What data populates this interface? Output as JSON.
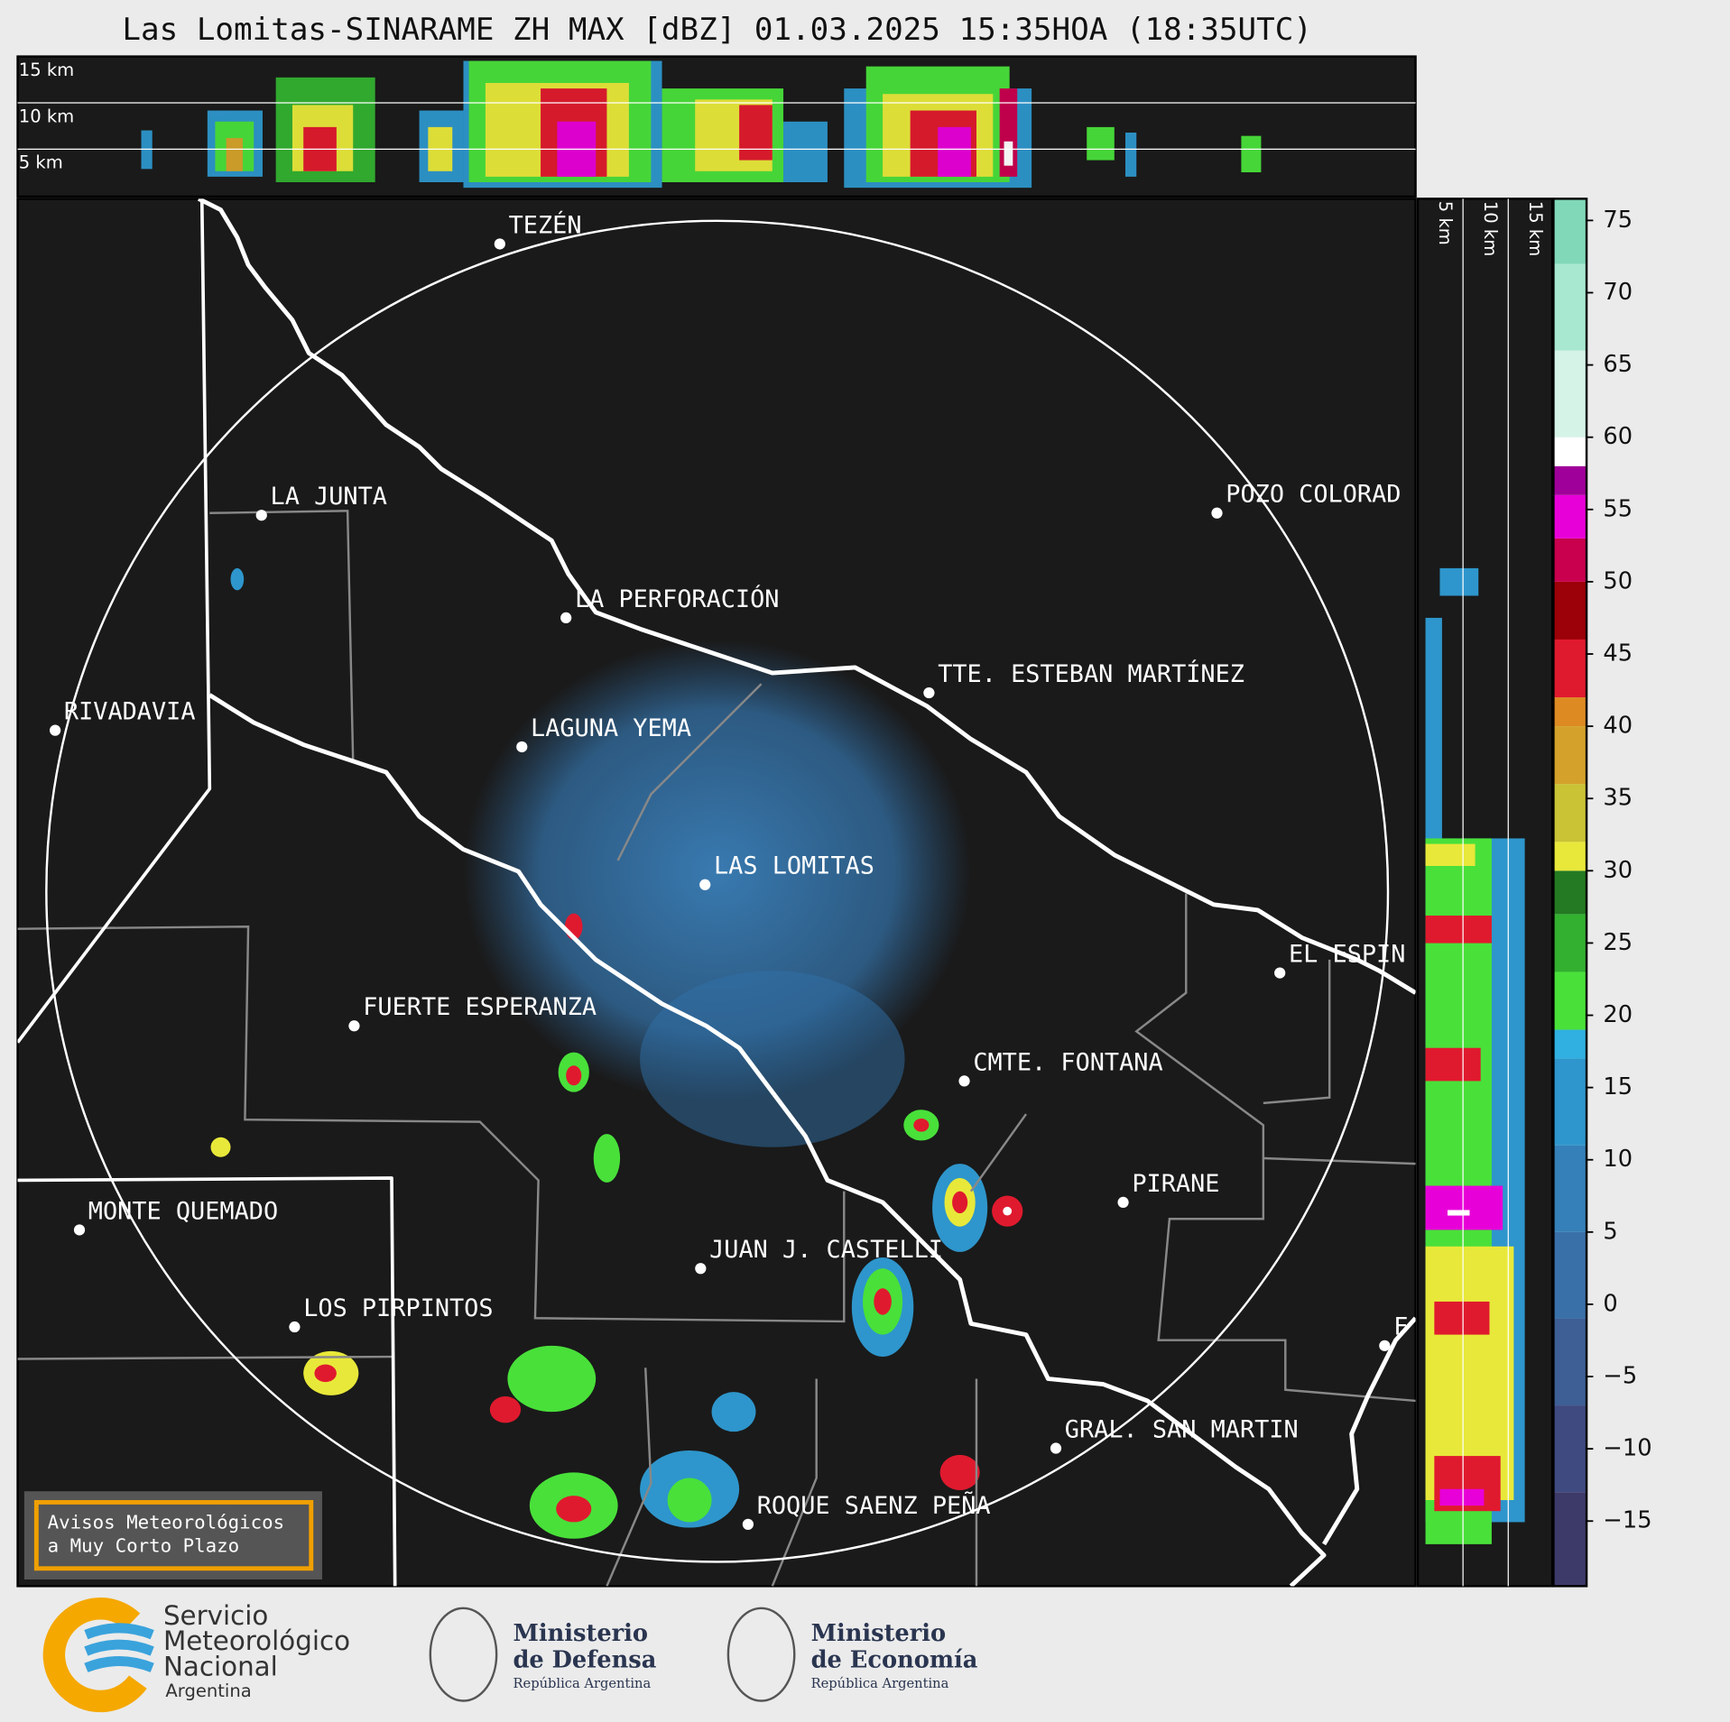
{
  "header": {
    "title": "Las Lomitas-SINARAME ZH MAX [dBZ] 01.03.2025 15:35HOA (18:35UTC)"
  },
  "top_panel": {
    "labels": [
      "15 km",
      "10 km",
      "5 km"
    ]
  },
  "side_panel": {
    "labels": [
      "5 km",
      "10 km",
      "15 km"
    ]
  },
  "map": {
    "cities": [
      {
        "name": "TEZÉN"
      },
      {
        "name": "LA JUNTA"
      },
      {
        "name": "POZO COLORAD"
      },
      {
        "name": "LA PERFORACIÓN"
      },
      {
        "name": "TTE. ESTEBAN MARTÍNEZ"
      },
      {
        "name": "RIVADAVIA"
      },
      {
        "name": "LAGUNA YEMA"
      },
      {
        "name": "LAS LOMITAS"
      },
      {
        "name": "EL ESPIN"
      },
      {
        "name": "FUERTE ESPERANZA"
      },
      {
        "name": "CMTE. FONTANA"
      },
      {
        "name": "PIRANE"
      },
      {
        "name": "MONTE QUEMADO"
      },
      {
        "name": "JUAN J. CASTELLI"
      },
      {
        "name": "LOS PIRPINTOS"
      },
      {
        "name": "GRAL. SAN MARTIN"
      },
      {
        "name": "ROQUE SAENZ PEÑA"
      },
      {
        "name": "F"
      }
    ]
  },
  "colorbar": {
    "lim": [
      -19.5,
      76.5
    ],
    "ticks": [
      75,
      70,
      65,
      60,
      55,
      50,
      45,
      40,
      35,
      30,
      25,
      20,
      15,
      10,
      5,
      0,
      {
        "value": -5,
        "label": "−5"
      },
      {
        "value": -10,
        "label": "−10"
      },
      {
        "value": -15,
        "label": "−15"
      }
    ],
    "bands": [
      {
        "from": -19.5,
        "to": -13,
        "color": "#3d3a6a"
      },
      {
        "from": -13,
        "to": -7,
        "color": "#3f4a80"
      },
      {
        "from": -7,
        "to": -1,
        "color": "#3d5f95"
      },
      {
        "from": -1,
        "to": 5,
        "color": "#3a70a8"
      },
      {
        "from": 5,
        "to": 11,
        "color": "#3580b8"
      },
      {
        "from": 11,
        "to": 17,
        "color": "#2e96cc"
      },
      {
        "from": 17,
        "to": 19,
        "color": "#2fb0e0"
      },
      {
        "from": 19,
        "to": 23,
        "color": "#49e03a"
      },
      {
        "from": 23,
        "to": 27,
        "color": "#33b030"
      },
      {
        "from": 27,
        "to": 30,
        "color": "#247a22"
      },
      {
        "from": 30,
        "to": 32,
        "color": "#e8e83a"
      },
      {
        "from": 32,
        "to": 36,
        "color": "#c9c335"
      },
      {
        "from": 36,
        "to": 40,
        "color": "#d4a22a"
      },
      {
        "from": 40,
        "to": 42,
        "color": "#de8a22"
      },
      {
        "from": 42,
        "to": 46,
        "color": "#e01a2e"
      },
      {
        "from": 46,
        "to": 50,
        "color": "#9c0008"
      },
      {
        "from": 50,
        "to": 53,
        "color": "#c8004e"
      },
      {
        "from": 53,
        "to": 56,
        "color": "#e800d8"
      },
      {
        "from": 56,
        "to": 58,
        "color": "#a0009a"
      },
      {
        "from": 58,
        "to": 60,
        "color": "#ffffff"
      },
      {
        "from": 60,
        "to": 66,
        "color": "#d6f3e8"
      },
      {
        "from": 66,
        "to": 72,
        "color": "#a8e8d0"
      },
      {
        "from": 72,
        "to": 76.5,
        "color": "#80d8b8"
      }
    ]
  },
  "warning": {
    "lines": [
      "Avisos Meteorológicos",
      "a Muy Corto Plazo"
    ]
  },
  "footer": {
    "smn": [
      "Servicio",
      "Meteorológico",
      "Nacional",
      "Argentina"
    ],
    "defensa": [
      "Ministerio",
      "de Defensa",
      "República Argentina"
    ],
    "economia": [
      "Ministerio",
      "de Economía",
      "República Argentina"
    ]
  }
}
